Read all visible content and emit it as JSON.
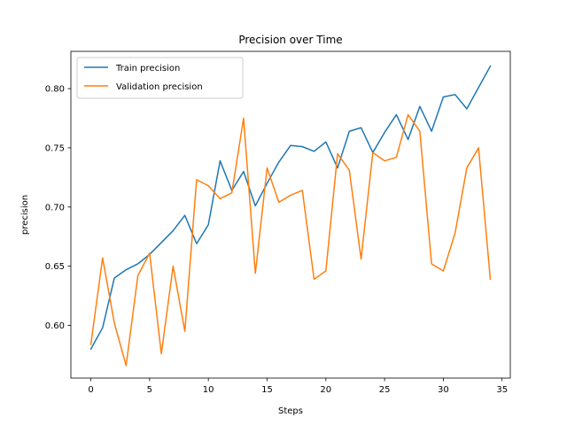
{
  "chart_data": {
    "type": "line",
    "title": "Precision over Time",
    "xlabel": "Steps",
    "ylabel": "precision",
    "xlim": [
      -1.7,
      35.7
    ],
    "ylim": [
      0.5555,
      0.8315
    ],
    "x_ticks": [
      0,
      5,
      10,
      15,
      20,
      25,
      30,
      35
    ],
    "y_ticks": [
      0.6,
      0.65,
      0.7,
      0.75,
      0.8
    ],
    "y_tick_labels": [
      "0.60",
      "0.65",
      "0.70",
      "0.75",
      "0.80"
    ],
    "legend_position": "top-left",
    "grid": false,
    "x": [
      0,
      1,
      2,
      3,
      4,
      5,
      6,
      7,
      8,
      9,
      10,
      11,
      12,
      13,
      14,
      15,
      16,
      17,
      18,
      19,
      20,
      21,
      22,
      23,
      24,
      25,
      26,
      27,
      28,
      29,
      30,
      31,
      32,
      33,
      34
    ],
    "series": [
      {
        "name": "Train precision",
        "color": "#1f77b4",
        "values": [
          0.58,
          0.598,
          0.64,
          0.647,
          0.652,
          0.66,
          0.67,
          0.68,
          0.693,
          0.669,
          0.685,
          0.739,
          0.714,
          0.73,
          0.701,
          0.72,
          0.738,
          0.752,
          0.751,
          0.747,
          0.755,
          0.733,
          0.764,
          0.767,
          0.746,
          0.763,
          0.778,
          0.757,
          0.785,
          0.764,
          0.793,
          0.795,
          0.783,
          0.801,
          0.819
        ]
      },
      {
        "name": "Validation precision",
        "color": "#ff7f0e",
        "values": [
          0.584,
          0.657,
          0.602,
          0.566,
          0.642,
          0.661,
          0.576,
          0.65,
          0.595,
          0.723,
          0.718,
          0.707,
          0.712,
          0.775,
          0.644,
          0.733,
          0.704,
          0.71,
          0.714,
          0.639,
          0.646,
          0.745,
          0.731,
          0.656,
          0.746,
          0.739,
          0.742,
          0.778,
          0.764,
          0.652,
          0.646,
          0.678,
          0.733,
          0.75,
          0.639
        ]
      }
    ]
  }
}
